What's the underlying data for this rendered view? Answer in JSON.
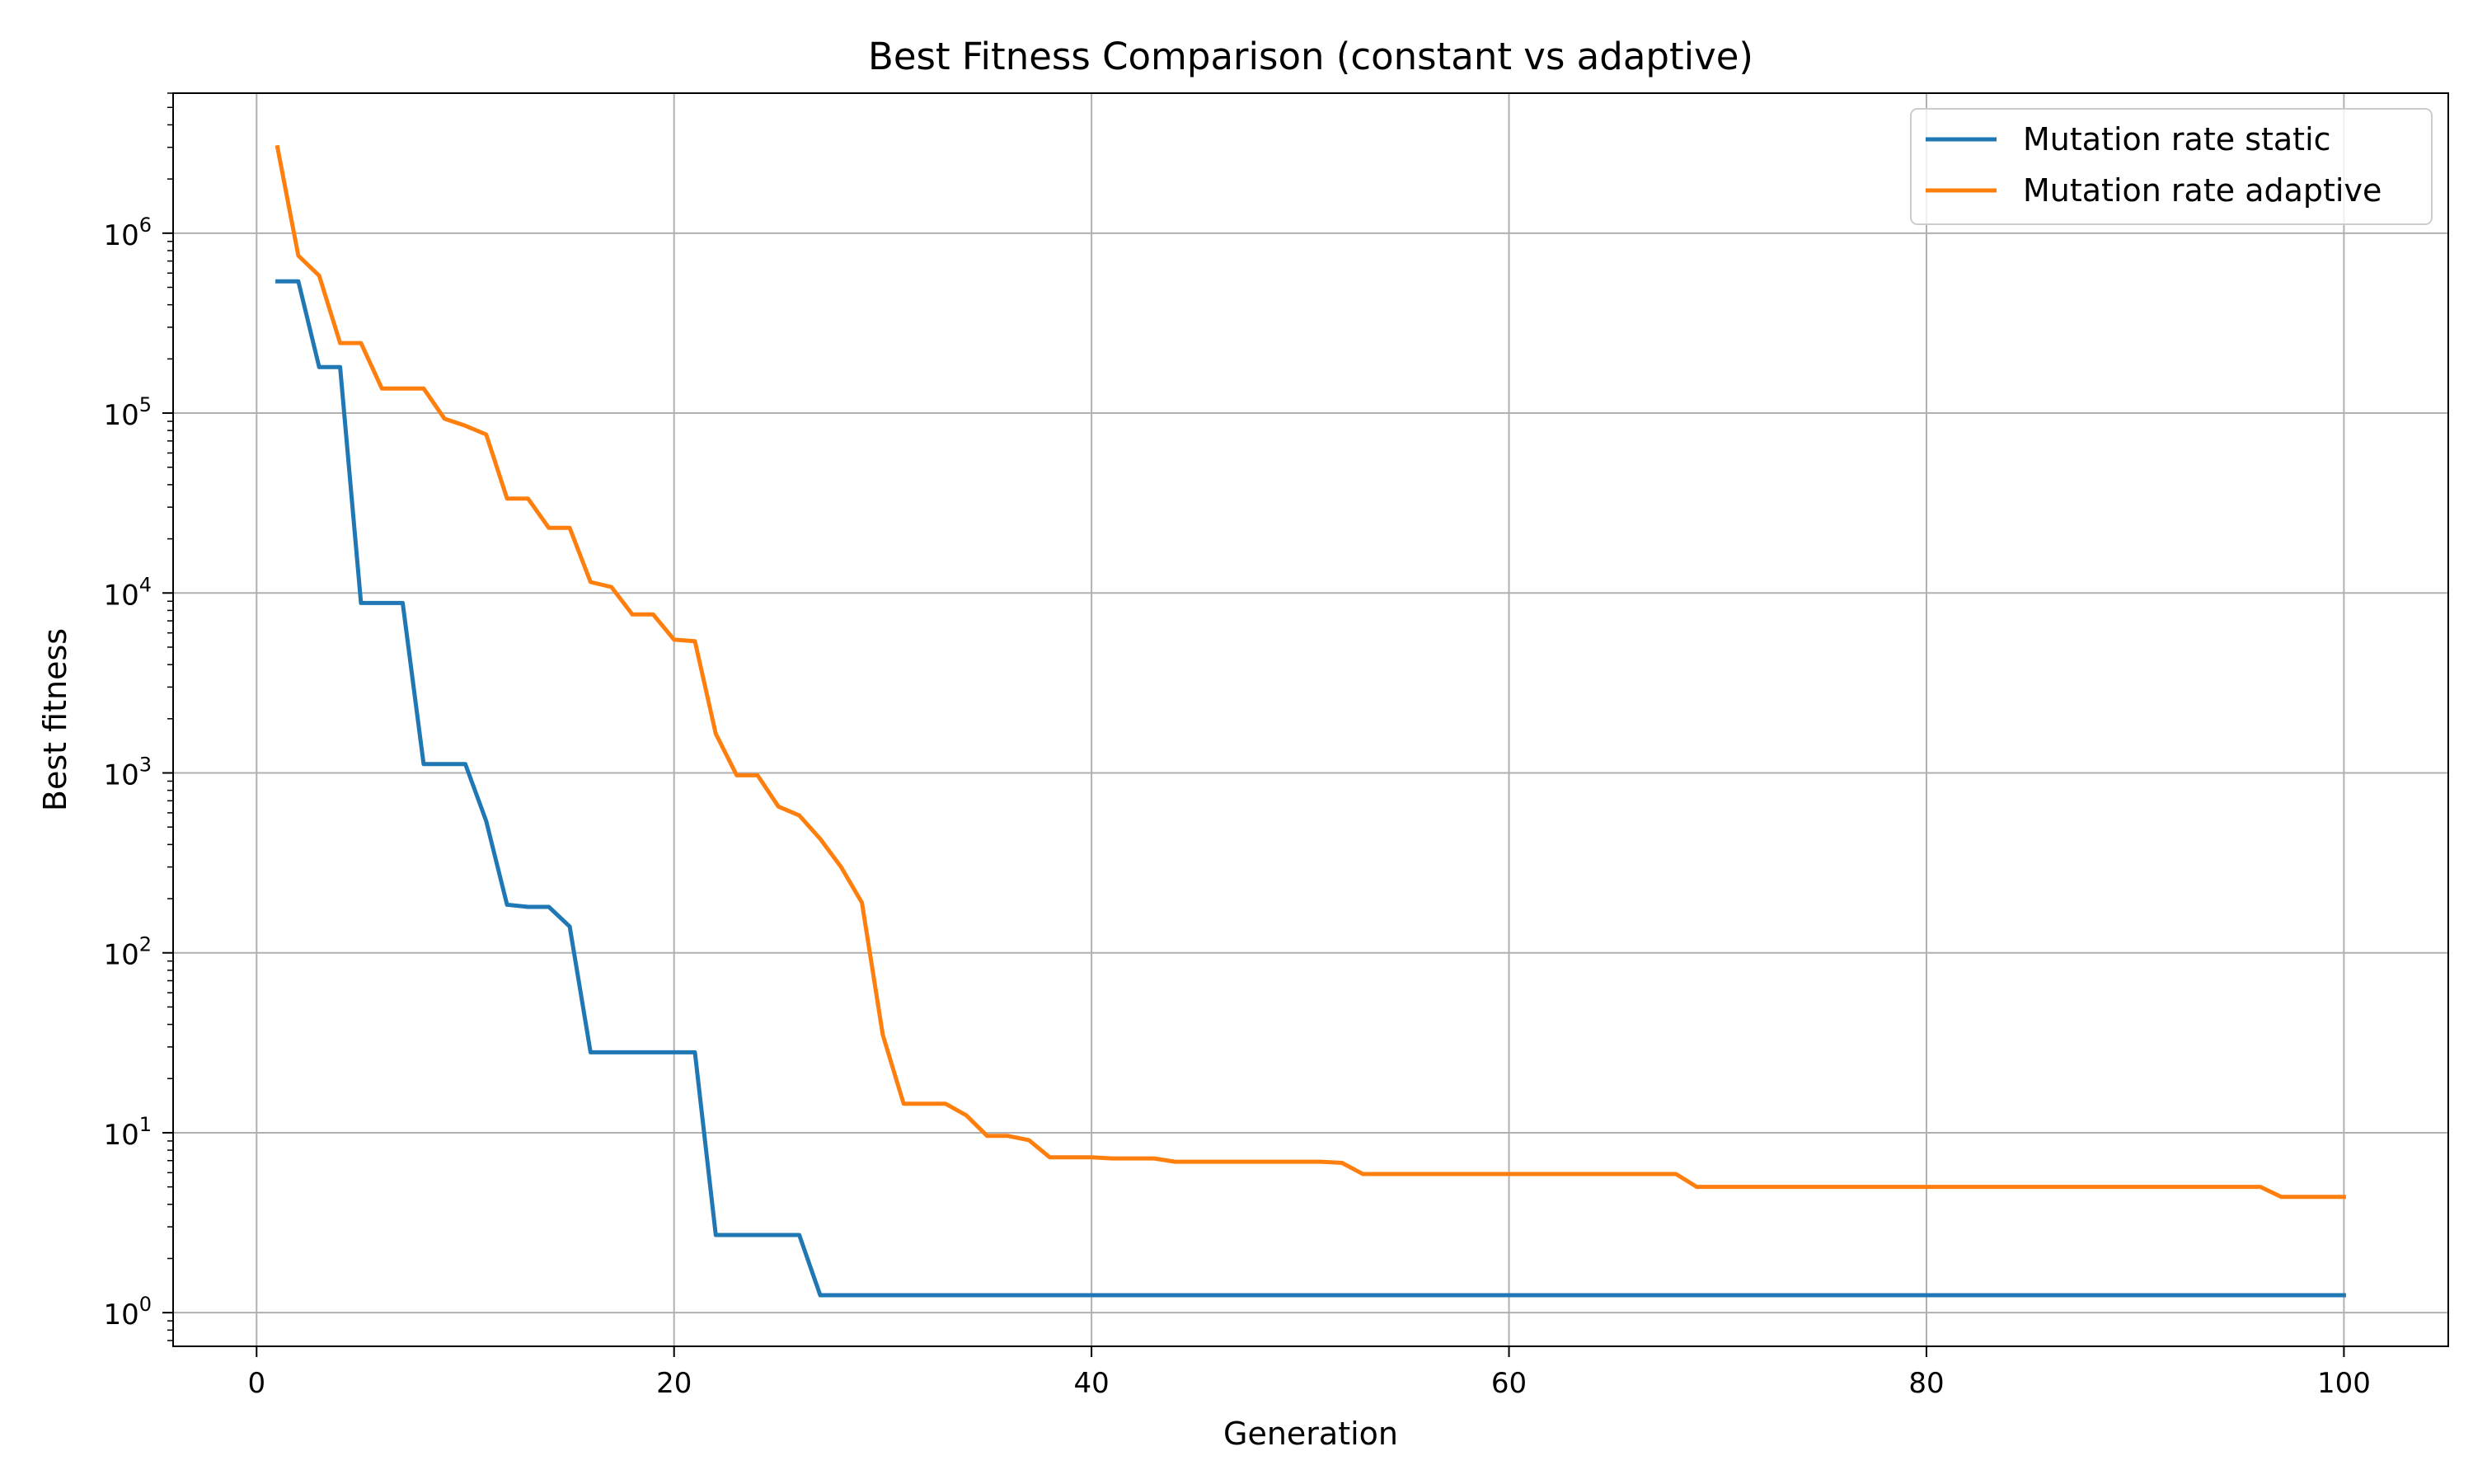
{
  "chart_data": {
    "type": "line",
    "title": "Best Fitness Comparison (constant vs adaptive)",
    "xlabel": "Generation",
    "ylabel": "Best fitness",
    "xlim": [
      -4,
      105
    ],
    "ylim": [
      0.65,
      6000000
    ],
    "yscale": "log",
    "grid": true,
    "legend_position": "top-right",
    "x_ticks": [
      0,
      20,
      40,
      60,
      80,
      100
    ],
    "y_ticks": [
      {
        "value": 1,
        "base": "10",
        "exp": "0"
      },
      {
        "value": 10,
        "base": "10",
        "exp": "1"
      },
      {
        "value": 100,
        "base": "10",
        "exp": "2"
      },
      {
        "value": 1000,
        "base": "10",
        "exp": "3"
      },
      {
        "value": 10000,
        "base": "10",
        "exp": "4"
      },
      {
        "value": 100000,
        "base": "10",
        "exp": "5"
      },
      {
        "value": 1000000,
        "base": "10",
        "exp": "6"
      }
    ],
    "series": [
      {
        "name": "Mutation rate static",
        "color": "#1f77b4",
        "points": [
          [
            1,
            540000
          ],
          [
            2,
            540000
          ],
          [
            3,
            180000
          ],
          [
            4,
            180000
          ],
          [
            5,
            8800
          ],
          [
            6,
            8800
          ],
          [
            7,
            8800
          ],
          [
            8,
            1120
          ],
          [
            9,
            1120
          ],
          [
            10,
            1120
          ],
          [
            11,
            540
          ],
          [
            12,
            185
          ],
          [
            13,
            180
          ],
          [
            14,
            180
          ],
          [
            15,
            140
          ],
          [
            16,
            28
          ],
          [
            21,
            28
          ],
          [
            22,
            2.7
          ],
          [
            26,
            2.7
          ],
          [
            27,
            1.25
          ],
          [
            100,
            1.25
          ]
        ]
      },
      {
        "name": "Mutation rate adaptive",
        "color": "#ff7f0e",
        "points": [
          [
            1,
            3000000
          ],
          [
            2,
            750000
          ],
          [
            3,
            580000
          ],
          [
            4,
            245000
          ],
          [
            5,
            245000
          ],
          [
            6,
            137000
          ],
          [
            7,
            137000
          ],
          [
            8,
            137000
          ],
          [
            9,
            93000
          ],
          [
            10,
            85000
          ],
          [
            11,
            76000
          ],
          [
            12,
            33500
          ],
          [
            13,
            33500
          ],
          [
            14,
            23000
          ],
          [
            15,
            23000
          ],
          [
            16,
            11500
          ],
          [
            17,
            10800
          ],
          [
            18,
            7600
          ],
          [
            19,
            7600
          ],
          [
            20,
            5500
          ],
          [
            21,
            5400
          ],
          [
            22,
            1650
          ],
          [
            23,
            970
          ],
          [
            24,
            970
          ],
          [
            25,
            650
          ],
          [
            26,
            580
          ],
          [
            27,
            430
          ],
          [
            28,
            300
          ],
          [
            29,
            190
          ],
          [
            30,
            35
          ],
          [
            31,
            14.5
          ],
          [
            32,
            14.5
          ],
          [
            33,
            14.5
          ],
          [
            34,
            12.5
          ],
          [
            35,
            9.6
          ],
          [
            36,
            9.6
          ],
          [
            37,
            9.1
          ],
          [
            38,
            7.3
          ],
          [
            40,
            7.3
          ],
          [
            41,
            7.2
          ],
          [
            43,
            7.2
          ],
          [
            44,
            6.9
          ],
          [
            51,
            6.9
          ],
          [
            52,
            6.8
          ],
          [
            53,
            5.9
          ],
          [
            68,
            5.9
          ],
          [
            69,
            5.0
          ],
          [
            96,
            5.0
          ],
          [
            97,
            4.4
          ],
          [
            100,
            4.4
          ]
        ]
      }
    ]
  }
}
